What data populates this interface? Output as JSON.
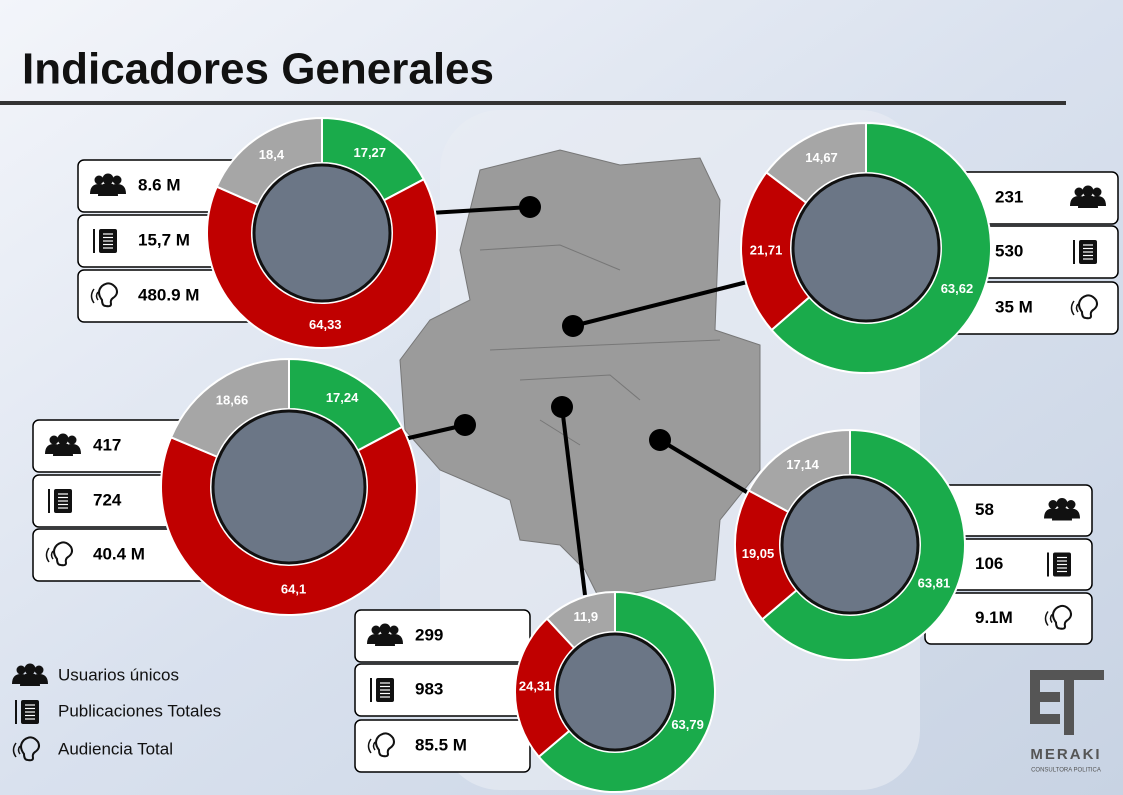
{
  "title": "Indicadores Generales",
  "legend": [
    "Usuarios únicos",
    "Publicaciones Totales",
    "Audiencia Total"
  ],
  "brand": "MERAKI",
  "brand_sub": "CONSULTORA POLITICA",
  "chart_data": [
    {
      "type": "donut",
      "values": [
        17.27,
        64.33,
        18.4
      ],
      "value_labels": [
        "17,27",
        "64,33",
        "18,4"
      ],
      "colors": [
        "#1aab4b",
        "#c00000",
        "#a6a6a6"
      ],
      "stats": [
        "8.6 M",
        "15,7 M",
        "480.9 M"
      ]
    },
    {
      "type": "donut",
      "values": [
        63.62,
        21.71,
        14.67
      ],
      "value_labels": [
        "63,62",
        "21,71",
        "14,67"
      ],
      "colors": [
        "#1aab4b",
        "#c00000",
        "#a6a6a6"
      ],
      "stats": [
        "231",
        "530",
        "35 M"
      ]
    },
    {
      "type": "donut",
      "values": [
        17.24,
        64.1,
        18.66
      ],
      "value_labels": [
        "17,24",
        "64,1",
        "18,66"
      ],
      "colors": [
        "#1aab4b",
        "#c00000",
        "#a6a6a6"
      ],
      "stats": [
        "417",
        "724",
        "40.4 M"
      ]
    },
    {
      "type": "donut",
      "values": [
        63.79,
        24.31,
        11.9
      ],
      "value_labels": [
        "63,79",
        "24,31",
        "11,9"
      ],
      "colors": [
        "#1aab4b",
        "#c00000",
        "#a6a6a6"
      ],
      "stats": [
        "299",
        "983",
        "85.5 M"
      ]
    },
    {
      "type": "donut",
      "values": [
        63.81,
        19.05,
        17.14
      ],
      "value_labels": [
        "63,81",
        "19,05",
        "17,14"
      ],
      "colors": [
        "#1aab4b",
        "#c00000",
        "#a6a6a6"
      ],
      "stats": [
        "58",
        "106",
        "9.1M"
      ]
    }
  ]
}
